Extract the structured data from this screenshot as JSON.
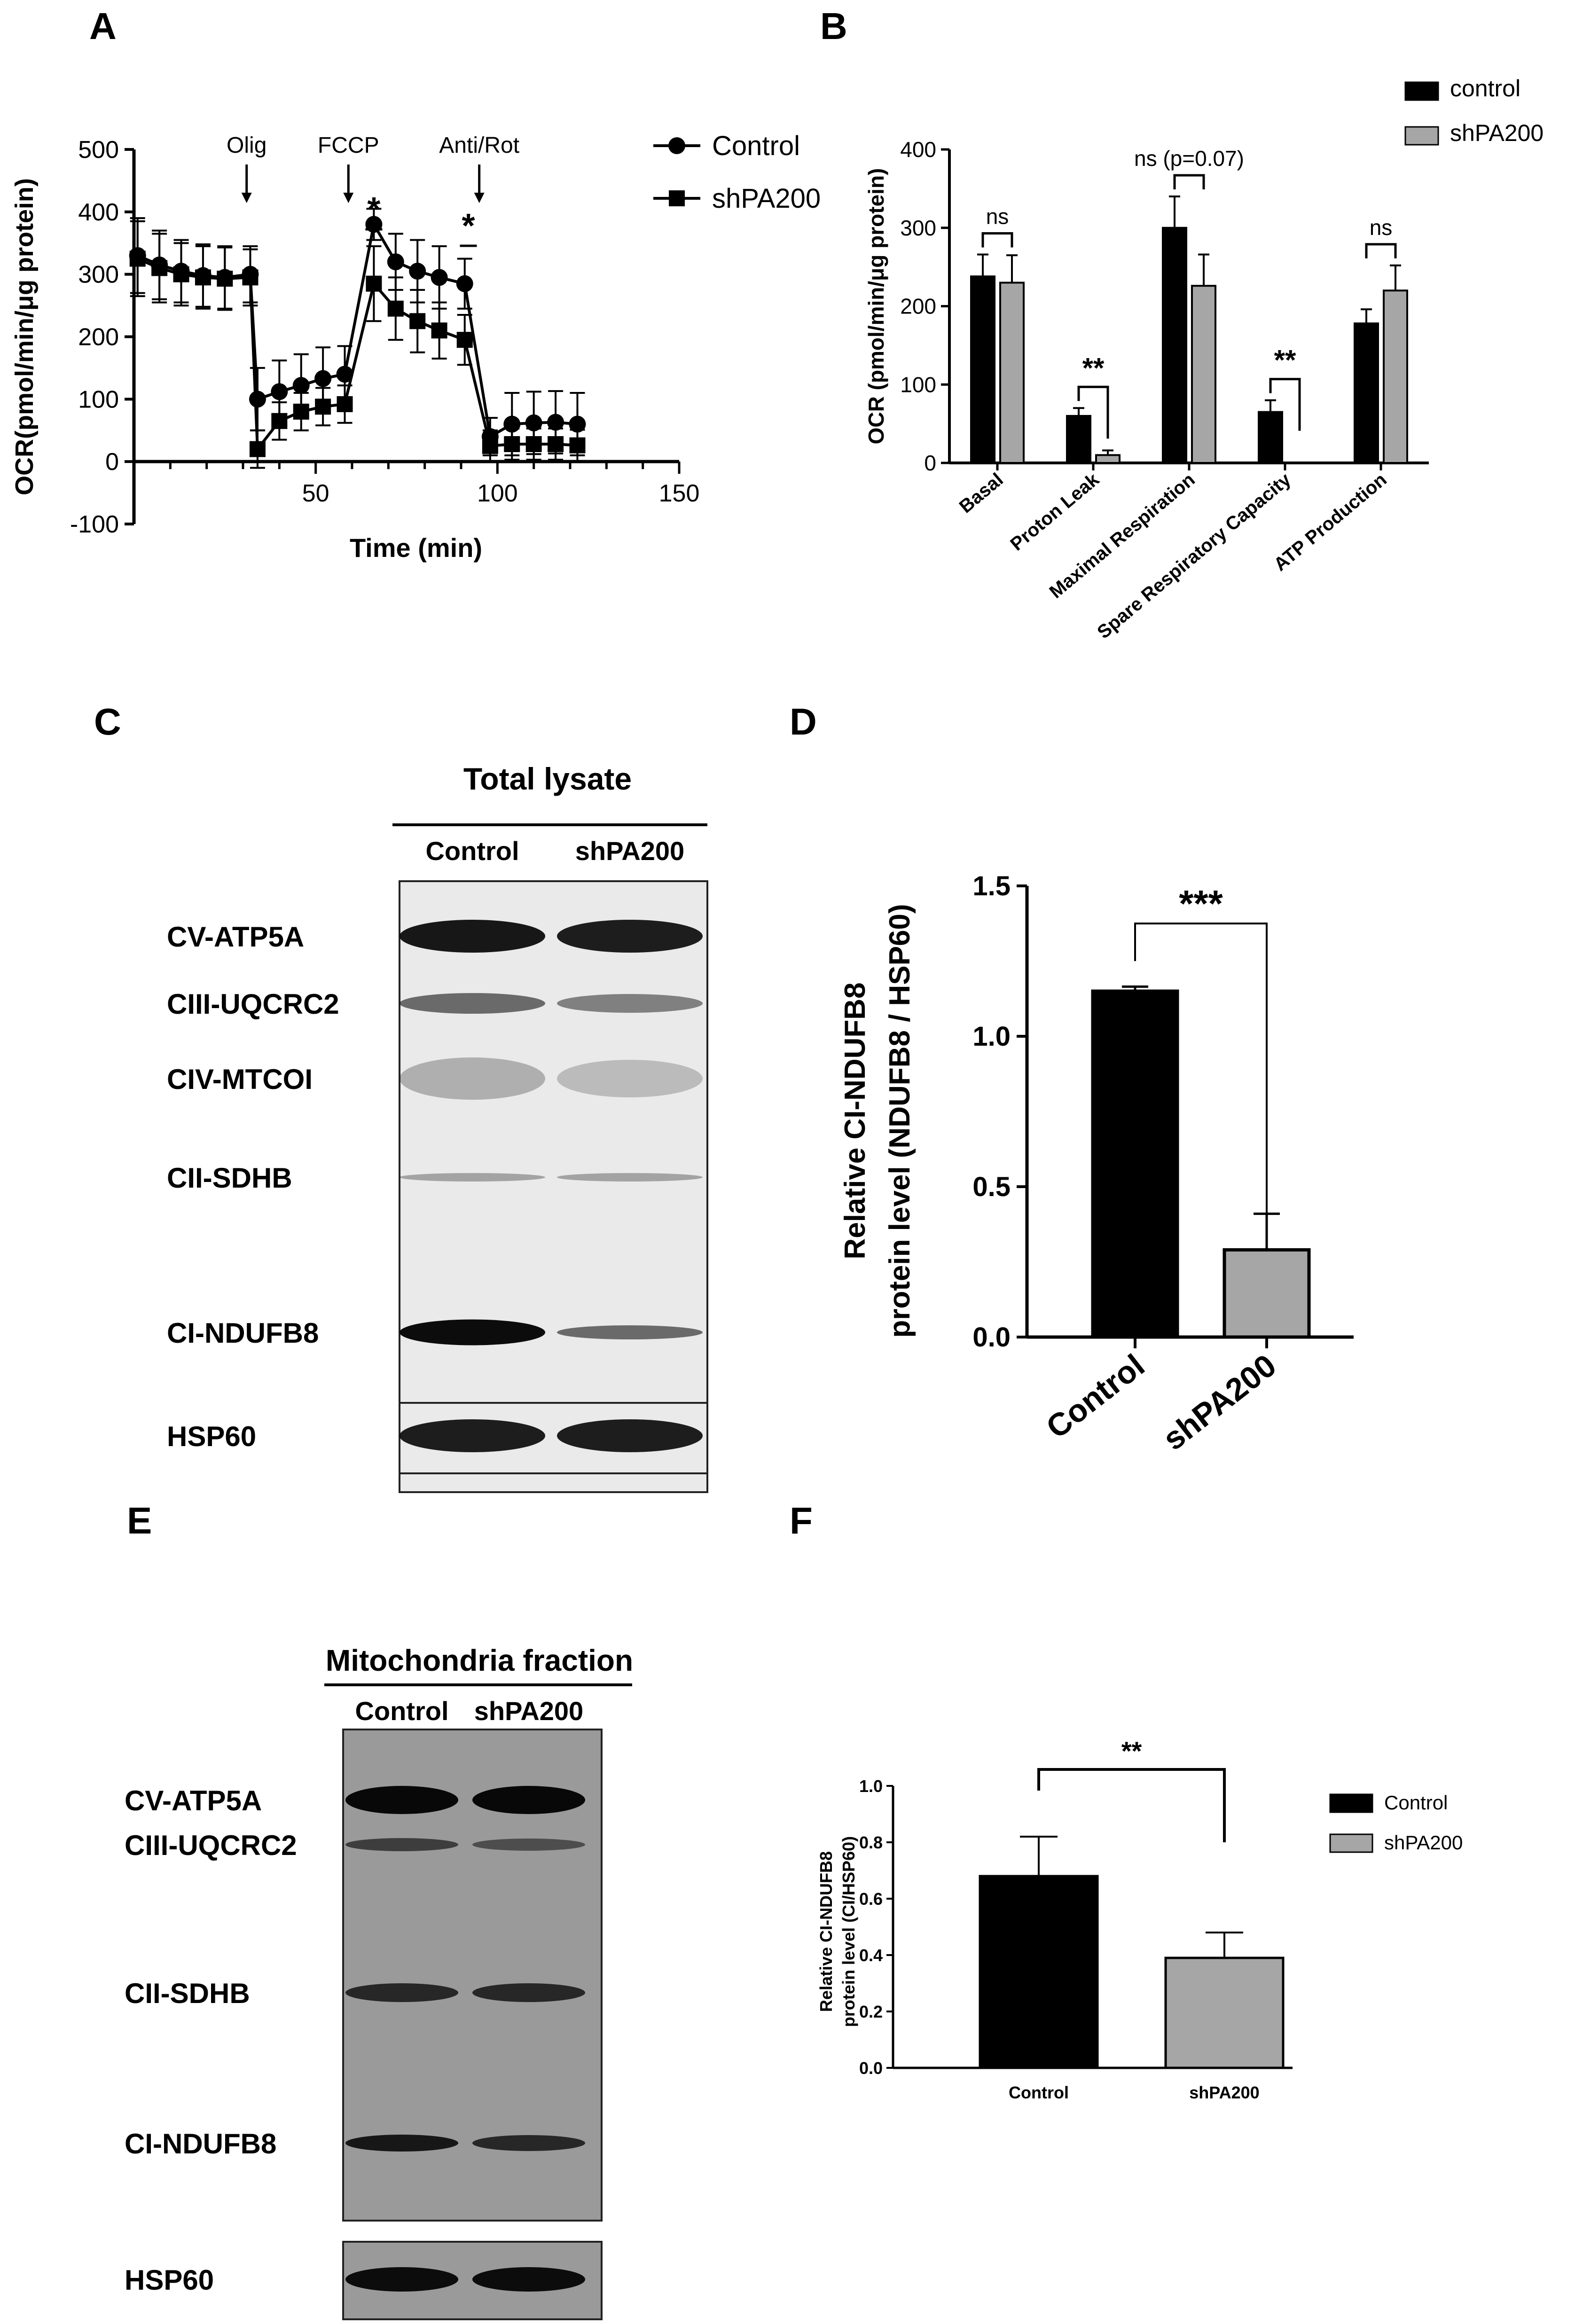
{
  "panels": {
    "A": "A",
    "B": "B",
    "C": "C",
    "D": "D",
    "E": "E",
    "F": "F"
  },
  "colors": {
    "dark": "#000000",
    "gray": "#a6a6a6",
    "blot_bg_c": "#eaeaea",
    "blot_bg_e": "#9a9a9a"
  },
  "chart_data": [
    {
      "panel": "A",
      "type": "line",
      "xlabel": "Time (min)",
      "ylabel": "OCR(pmol/min/μg protein)",
      "xlim": [
        0,
        150
      ],
      "ylim": [
        -100,
        500
      ],
      "xticks": [
        "50",
        "100",
        "150"
      ],
      "yticks": [
        "-100",
        "0",
        "100",
        "200",
        "300",
        "400",
        "500"
      ],
      "markers": [
        "●",
        "■"
      ],
      "injections": [
        {
          "label": "Olig",
          "x": 31
        },
        {
          "label": "FCCP",
          "x": 59
        },
        {
          "label": "Anti/Rot",
          "x": 95
        }
      ],
      "stars": [
        {
          "label": "*",
          "x": 66
        },
        {
          "label": "*",
          "x": 92
        }
      ],
      "x": [
        1,
        7,
        13,
        19,
        25,
        32,
        34,
        40,
        46,
        52,
        58,
        66,
        72,
        78,
        84,
        91,
        98,
        104,
        110,
        116,
        122
      ],
      "series": [
        {
          "name": "Control",
          "marker": "circle",
          "values": [
            330,
            315,
            305,
            298,
            295,
            300,
            100,
            112,
            122,
            133,
            140,
            380,
            320,
            305,
            295,
            285,
            40,
            60,
            62,
            63,
            60
          ],
          "error": [
            60,
            55,
            50,
            50,
            50,
            45,
            50,
            50,
            50,
            50,
            45,
            25,
            45,
            50,
            50,
            40,
            30,
            50,
            50,
            50,
            50
          ]
        },
        {
          "name": "shPA200",
          "marker": "square",
          "values": [
            325,
            310,
            300,
            295,
            293,
            295,
            20,
            65,
            80,
            88,
            92,
            285,
            245,
            225,
            210,
            195,
            25,
            28,
            28,
            28,
            26
          ],
          "error": [
            60,
            55,
            50,
            50,
            50,
            45,
            30,
            30,
            30,
            30,
            30,
            60,
            50,
            50,
            45,
            40,
            25,
            25,
            25,
            25,
            25
          ]
        }
      ]
    },
    {
      "panel": "B",
      "type": "bar",
      "ylabel": "OCR (pmol/min/μg protein)",
      "ylim": [
        0,
        400
      ],
      "yticks": [
        "0",
        "100",
        "200",
        "300",
        "400"
      ],
      "categories": [
        "Basal",
        "Proton Leak",
        "Maximal Respiration",
        "Spare Respiratory Capacity",
        "ATP Production"
      ],
      "series": [
        {
          "name": "control",
          "values": [
            238,
            60,
            300,
            65,
            178
          ],
          "error": [
            28,
            10,
            40,
            15,
            18
          ]
        },
        {
          "name": "shPA200",
          "values": [
            230,
            10,
            226,
            0,
            220
          ],
          "error": [
            35,
            6,
            40,
            0,
            32
          ]
        }
      ],
      "significance": [
        "ns",
        "**",
        "ns (p=0.07)",
        "**",
        "ns"
      ]
    },
    {
      "panel": "D",
      "type": "bar",
      "ylabel": [
        "Relative CI-NDUFB8",
        "protein level (NDUFB8 / HSP60)"
      ],
      "ylim": [
        0,
        1.5
      ],
      "yticks": [
        "0.0",
        "0.5",
        "1.0",
        "1.5"
      ],
      "categories": [
        "Control",
        "shPA200"
      ],
      "values": [
        1.15,
        0.29
      ],
      "error": [
        0.015,
        0.12
      ],
      "significance": "***"
    },
    {
      "panel": "F",
      "type": "bar",
      "ylabel": [
        "Relative CI-NDUFB8",
        "protein level (CI/HSP60)"
      ],
      "ylim": [
        0,
        1.0
      ],
      "yticks": [
        "0.0",
        "0.2",
        "0.4",
        "0.6",
        "0.8",
        "1.0"
      ],
      "categories": [
        "Control",
        "shPA200"
      ],
      "values": [
        0.68,
        0.39
      ],
      "error": [
        0.14,
        0.09
      ],
      "legend": [
        "Control",
        "shPA200"
      ],
      "significance": "**"
    }
  ],
  "blots": {
    "C": {
      "header": "Total lysate",
      "lanes": [
        "Control",
        "shPA200"
      ],
      "labels": [
        "CV-ATP5A",
        "CIII-UQCRC2",
        "CIV-MTCOI",
        "CII-SDHB",
        "CI-NDUFB8",
        "HSP60"
      ]
    },
    "E": {
      "header": "Mitochondria fraction",
      "lanes": [
        "Control",
        "shPA200"
      ],
      "labels": [
        "CV-ATP5A",
        "CIII-UQCRC2",
        "CII-SDHB",
        "CI-NDUFB8",
        "HSP60"
      ]
    }
  }
}
